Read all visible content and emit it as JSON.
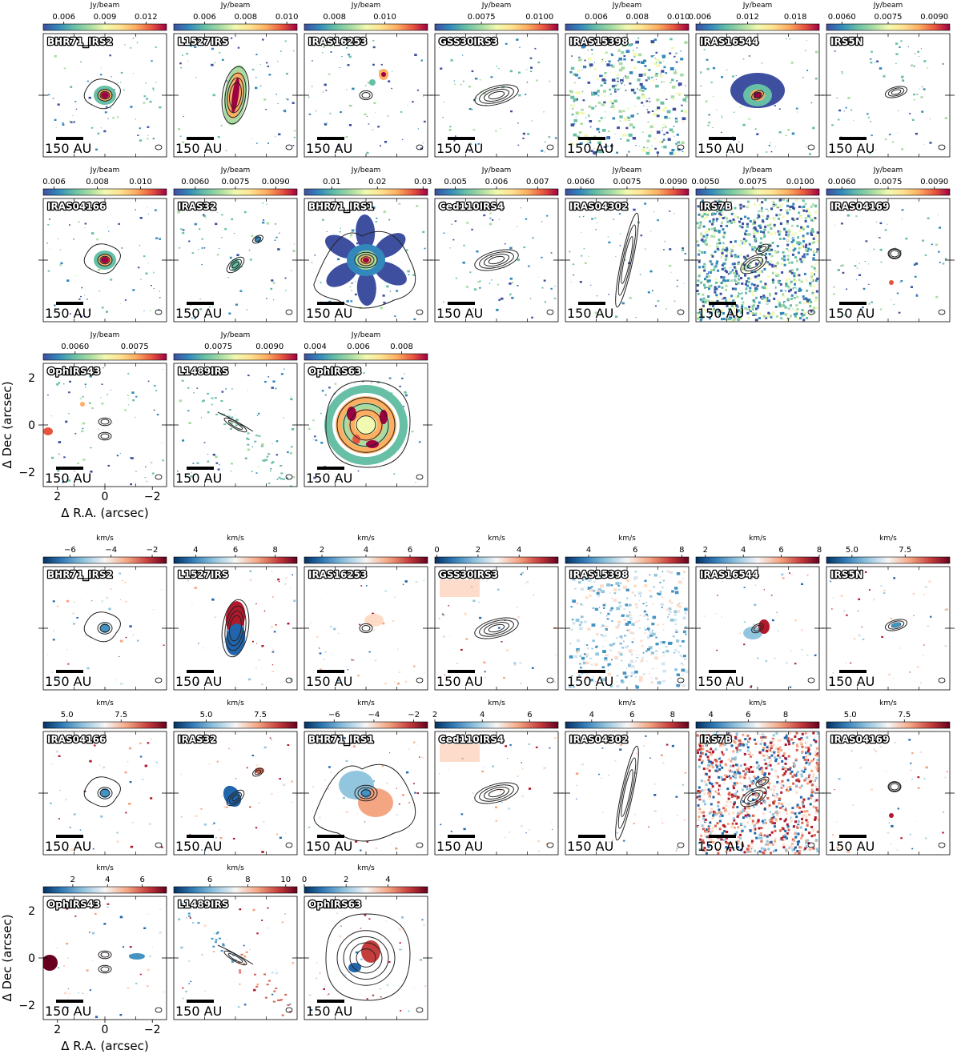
{
  "figure": {
    "axes": {
      "xlabel": "Δ R.A. (arcsec)",
      "ylabel": "Δ Dec (arcsec)",
      "xticks": [
        "−2",
        "0",
        "2"
      ],
      "yticks": [
        "2",
        "0",
        "−2"
      ],
      "xlim": [
        2.6,
        -2.6
      ],
      "ylim": [
        -2.6,
        2.6
      ]
    },
    "scale_bar_label": "150 AU"
  },
  "chart_data": [
    {
      "type": "heatmap",
      "group": "intensity",
      "colorbar_label": "Jy/beam",
      "colormap": "Spectral_r",
      "panels": [
        {
          "label": "BHR71_IRS2",
          "ticks": [
            "0.006",
            "0.009",
            "0.012"
          ],
          "range": [
            0.0045,
            0.0135
          ],
          "src": "compact"
        },
        {
          "label": "L1527IRS",
          "ticks": [
            "0.006",
            "0.008",
            "0.010"
          ],
          "range": [
            0.0045,
            0.0105
          ],
          "src": "edge_on"
        },
        {
          "label": "IRAS16253",
          "ticks": [
            "0.008",
            "0.010"
          ],
          "range": [
            0.0068,
            0.0117
          ],
          "src": "small_offset"
        },
        {
          "label": "GSS30IRS3",
          "ticks": [
            "0.0075",
            "0.0100"
          ],
          "range": [
            0.0055,
            0.0108
          ],
          "src": "disk_only"
        },
        {
          "label": "IRAS15398",
          "ticks": [
            "0.006",
            "0.008",
            "0.010"
          ],
          "range": [
            0.0045,
            0.0105
          ],
          "src": "noisy"
        },
        {
          "label": "IRAS16544",
          "ticks": [
            "0.006",
            "0.012",
            "0.018"
          ],
          "range": [
            0.0055,
            0.021
          ],
          "src": "bright_blob"
        },
        {
          "label": "IRS5N",
          "ticks": [
            "0.0060",
            "0.0075",
            "0.0090"
          ],
          "range": [
            0.0055,
            0.0095
          ],
          "src": "small_disk"
        },
        {
          "label": "IRAS04166",
          "ticks": [
            "0.006",
            "0.008",
            "0.010"
          ],
          "range": [
            0.0055,
            0.0112
          ],
          "src": "compact"
        },
        {
          "label": "IRAS32",
          "ticks": [
            "0.0060",
            "0.0075",
            "0.0090"
          ],
          "range": [
            0.0052,
            0.0098
          ],
          "src": "binary"
        },
        {
          "label": "BHR71_IRS1",
          "ticks": [
            "0.01",
            "0.02",
            "0.03"
          ],
          "range": [
            0.004,
            0.031
          ],
          "src": "outflow"
        },
        {
          "label": "Ced110IRS4",
          "ticks": [
            "0.005",
            "0.006",
            "0.007"
          ],
          "range": [
            0.0045,
            0.0075
          ],
          "src": "disk_only"
        },
        {
          "label": "IRAS04302",
          "ticks": [
            "0.0060",
            "0.0075",
            "0.0090"
          ],
          "range": [
            0.0055,
            0.0095
          ],
          "src": "thin_edge"
        },
        {
          "label": "IRS7B",
          "ticks": [
            "0.0050",
            "0.0075",
            "0.0100"
          ],
          "range": [
            0.0045,
            0.011
          ],
          "src": "full_noise"
        },
        {
          "label": "IRAS04169",
          "ticks": [
            "0.0060",
            "0.0075",
            "0.0090"
          ],
          "range": [
            0.0055,
            0.0095
          ],
          "src": "tiny"
        },
        {
          "label": "OphIRS43",
          "ticks": [
            "0.0060",
            "0.0075"
          ],
          "range": [
            0.0052,
            0.0083
          ],
          "src": "binary2"
        },
        {
          "label": "L1489IRS",
          "ticks": [
            "0.0075",
            "0.0090"
          ],
          "range": [
            0.0062,
            0.0098
          ],
          "src": "diagonal"
        },
        {
          "label": "OphIRS63",
          "ticks": [
            "0.004",
            "0.006",
            "0.008"
          ],
          "range": [
            0.0035,
            0.0092
          ],
          "src": "rings"
        }
      ]
    },
    {
      "type": "heatmap",
      "group": "velocity",
      "colorbar_label": "km/s",
      "colormap": "RdBu_r",
      "panels": [
        {
          "label": "BHR71_IRS2",
          "ticks": [
            "−6",
            "−4",
            "−2"
          ],
          "range": [
            -7.3,
            -1.3
          ],
          "src": "compact"
        },
        {
          "label": "L1527IRS",
          "ticks": [
            "4",
            "6",
            "8"
          ],
          "range": [
            2.9,
            9.1
          ],
          "src": "edge_on"
        },
        {
          "label": "IRAS16253",
          "ticks": [
            "2",
            "4",
            "6"
          ],
          "range": [
            1.2,
            6.8
          ],
          "src": "small_offset"
        },
        {
          "label": "GSS30IRS3",
          "ticks": [
            "0",
            "2",
            "4"
          ],
          "range": [
            -0.1,
            5.9
          ],
          "src": "disk_only"
        },
        {
          "label": "IRAS15398",
          "ticks": [
            "4",
            "6",
            "8"
          ],
          "range": [
            3,
            8.3
          ],
          "src": "noisy"
        },
        {
          "label": "IRAS16544",
          "ticks": [
            "2",
            "4",
            "6",
            "8"
          ],
          "range": [
            1.5,
            8
          ],
          "src": "bright_blob"
        },
        {
          "label": "IRS5N",
          "ticks": [
            "5.0",
            "7.5"
          ],
          "range": [
            3.8,
            9.6
          ],
          "src": "small_disk"
        },
        {
          "label": "IRAS04166",
          "ticks": [
            "5.0",
            "7.5"
          ],
          "range": [
            3.9,
            9.6
          ],
          "src": "compact"
        },
        {
          "label": "IRAS32",
          "ticks": [
            "5.0",
            "7.5"
          ],
          "range": [
            3.5,
            9.2
          ],
          "src": "binary"
        },
        {
          "label": "BHR71_IRS1",
          "ticks": [
            "−6",
            "−4",
            "−2"
          ],
          "range": [
            -7.5,
            -1.3
          ],
          "src": "outflow"
        },
        {
          "label": "Ced110IRS4",
          "ticks": [
            "2",
            "4",
            "6"
          ],
          "range": [
            2,
            7.2
          ],
          "src": "disk_only"
        },
        {
          "label": "IRAS04302",
          "ticks": [
            "4",
            "6",
            "8"
          ],
          "range": [
            2.7,
            8.8
          ],
          "src": "thin_edge"
        },
        {
          "label": "IRS7B",
          "ticks": [
            "4",
            "6",
            "8"
          ],
          "range": [
            3.2,
            9.8
          ],
          "src": "full_noise"
        },
        {
          "label": "IRAS04169",
          "ticks": [
            "5.0",
            "7.5"
          ],
          "range": [
            3.9,
            9.6
          ],
          "src": "tiny"
        },
        {
          "label": "OphIRS43",
          "ticks": [
            "2",
            "4",
            "6"
          ],
          "range": [
            0.3,
            7.4
          ],
          "src": "binary2"
        },
        {
          "label": "L1489IRS",
          "ticks": [
            "6",
            "8",
            "10"
          ],
          "range": [
            4.1,
            10.6
          ],
          "src": "diagonal"
        },
        {
          "label": "OphIRS63",
          "ticks": [
            "0",
            "2",
            "4"
          ],
          "range": [
            0,
            5.9
          ],
          "src": "rings"
        }
      ]
    }
  ]
}
